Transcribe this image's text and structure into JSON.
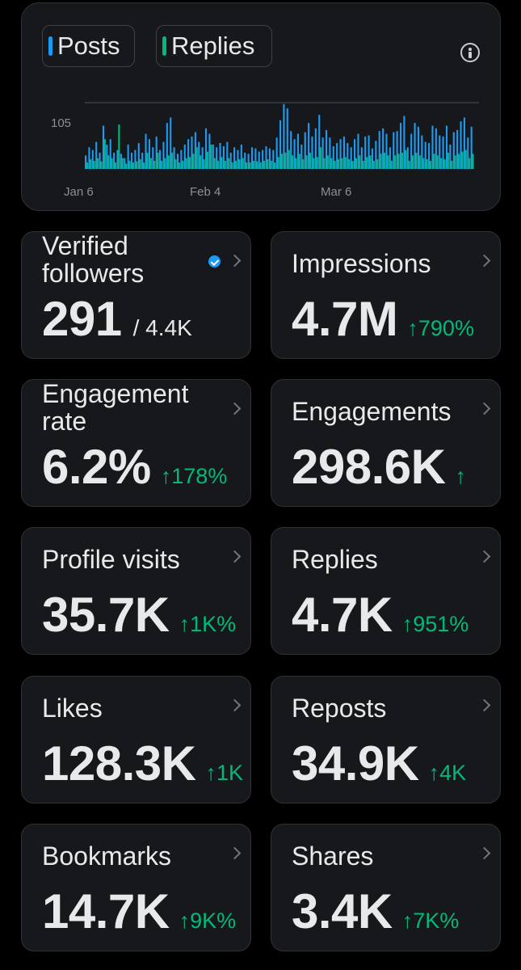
{
  "chart": {
    "toggles": [
      {
        "label": "Posts",
        "color": "#1d9bf0"
      },
      {
        "label": "Replies",
        "color": "#00ba7c"
      }
    ]
  },
  "chart_data": {
    "type": "bar",
    "y_tick": "105",
    "x_ticks": [
      "Jan 6",
      "Feb 4",
      "Mar 6"
    ],
    "grid": true,
    "series": [
      {
        "name": "Posts",
        "color": "#1d9bf0",
        "values": [
          25,
          40,
          35,
          50,
          30,
          80,
          45,
          55,
          30,
          35,
          28,
          20,
          45,
          30,
          35,
          48,
          30,
          65,
          55,
          40,
          60,
          35,
          50,
          85,
          95,
          40,
          28,
          35,
          45,
          55,
          60,
          68,
          50,
          40,
          75,
          65,
          45,
          40,
          48,
          42,
          50,
          30,
          40,
          35,
          45,
          30,
          28,
          40,
          38,
          32,
          35,
          42,
          38,
          35,
          58,
          90,
          120,
          112,
          70,
          55,
          65,
          45,
          68,
          85,
          60,
          75,
          100,
          58,
          72,
          58,
          42,
          48,
          55,
          60,
          48,
          40,
          55,
          65,
          40,
          60,
          62,
          38,
          52,
          70,
          75,
          65,
          40,
          68,
          70,
          85,
          98,
          40,
          65,
          85,
          78,
          62,
          50,
          48,
          80,
          75,
          62,
          60,
          80,
          45,
          68,
          72,
          88,
          95,
          58,
          78
        ]
      },
      {
        "name": "Replies",
        "color": "#00ba7c",
        "values": [
          12,
          18,
          15,
          20,
          14,
          55,
          25,
          20,
          12,
          82,
          20,
          10,
          15,
          12,
          14,
          18,
          12,
          30,
          20,
          15,
          30,
          15,
          20,
          25,
          30,
          18,
          12,
          15,
          20,
          22,
          28,
          40,
          25,
          18,
          32,
          45,
          20,
          15,
          22,
          15,
          20,
          12,
          15,
          18,
          20,
          12,
          12,
          15,
          14,
          12,
          15,
          18,
          15,
          12,
          22,
          28,
          30,
          35,
          25,
          20,
          28,
          18,
          25,
          30,
          20,
          22,
          40,
          20,
          25,
          20,
          15,
          18,
          20,
          22,
          18,
          15,
          20,
          25,
          15,
          22,
          25,
          15,
          18,
          28,
          30,
          25,
          15,
          25,
          28,
          30,
          35,
          15,
          25,
          30,
          25,
          20,
          18,
          15,
          28,
          25,
          20,
          18,
          30,
          15,
          25,
          28,
          32,
          35,
          20,
          28
        ]
      }
    ]
  },
  "metrics": [
    {
      "label": "Verified followers",
      "value": "291",
      "sub": "/ 4.4K",
      "change": "",
      "verified": true
    },
    {
      "label": "Impressions",
      "value": "4.7M",
      "sub": "",
      "change": "↑790%"
    },
    {
      "label": "Engagement rate",
      "value": "6.2%",
      "sub": "",
      "change": "↑178%"
    },
    {
      "label": "Engagements",
      "value": "298.6K",
      "sub": "",
      "change": "↑"
    },
    {
      "label": "Profile visits",
      "value": "35.7K",
      "sub": "",
      "change": "↑1K%"
    },
    {
      "label": "Replies",
      "value": "4.7K",
      "sub": "",
      "change": "↑951%"
    },
    {
      "label": "Likes",
      "value": "128.3K",
      "sub": "",
      "change": "↑1K"
    },
    {
      "label": "Reposts",
      "value": "34.9K",
      "sub": "",
      "change": "↑4K"
    },
    {
      "label": "Bookmarks",
      "value": "14.7K",
      "sub": "",
      "change": "↑9K%"
    },
    {
      "label": "Shares",
      "value": "3.4K",
      "sub": "",
      "change": "↑7K%"
    }
  ]
}
